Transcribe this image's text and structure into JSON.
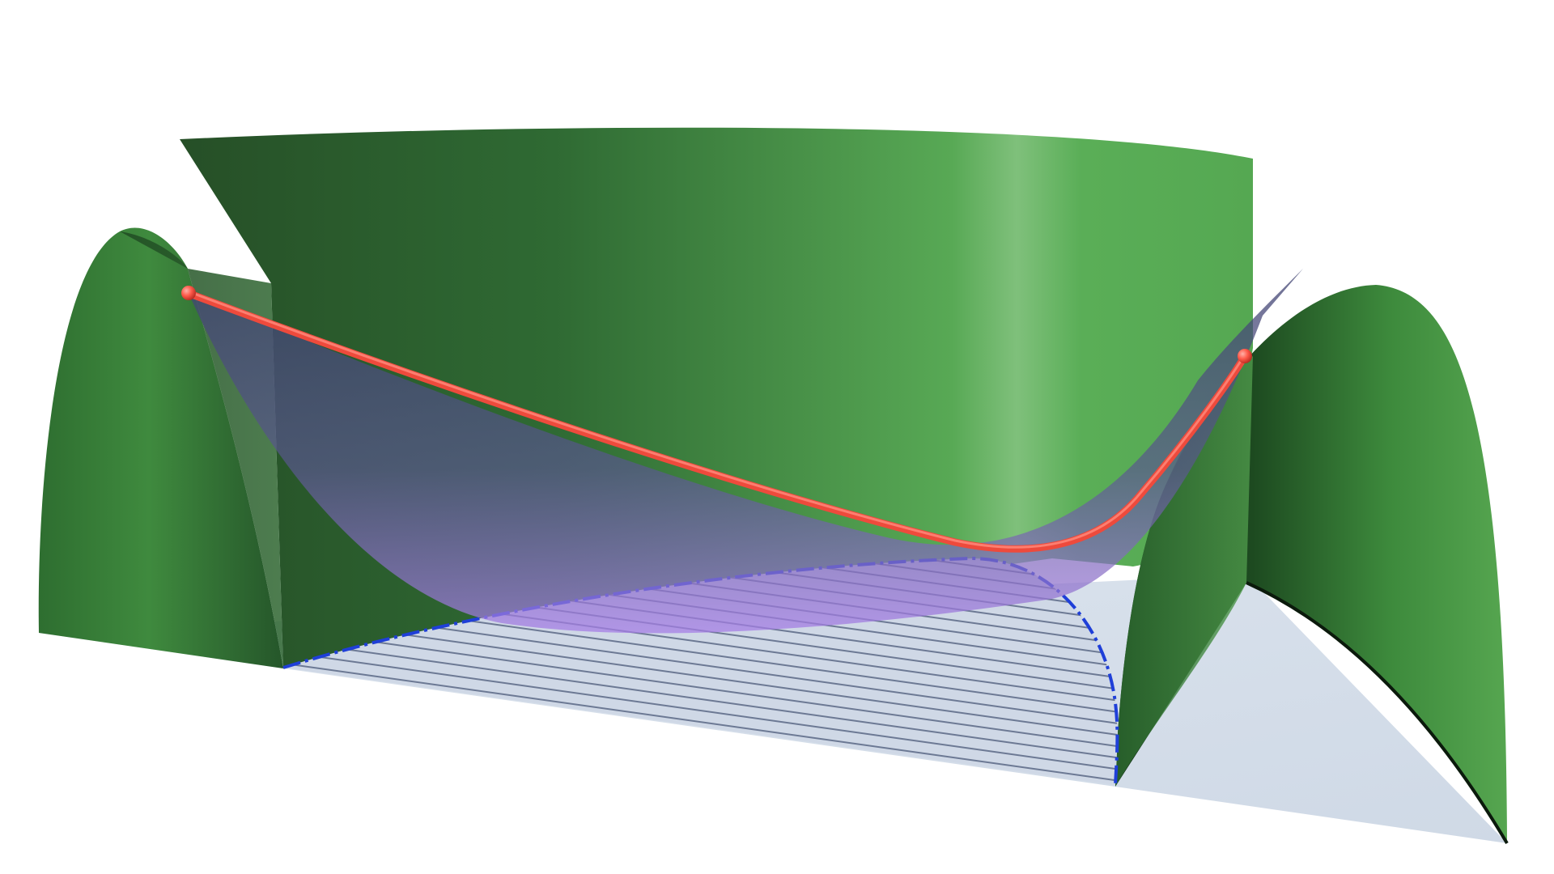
{
  "figure": {
    "kind": "3d-surface-rendering",
    "elements": [
      "ground-plane",
      "left-dome-surface",
      "back-wall-surface",
      "right-dome-surface",
      "purple-saddle-surface",
      "hatched-shadow-region",
      "red-curve",
      "red-endpoint-markers"
    ]
  },
  "colors": {
    "background": "#ffffff",
    "ground": "#d4dde9",
    "surface_green_dark": "#1f4f23",
    "surface_green_mid": "#2f6e33",
    "surface_green_light": "#5fb05a",
    "surface_green_highlight": "#7ec07a",
    "saddle_purple_top": "#4a4c7a",
    "saddle_purple_bottom": "#a57be0",
    "hatch_lines": "#6a7690",
    "hatch_boundary": "#1f3fd8",
    "curve_red": "#ee4a3c",
    "marker_red": "#ff5a4a"
  }
}
